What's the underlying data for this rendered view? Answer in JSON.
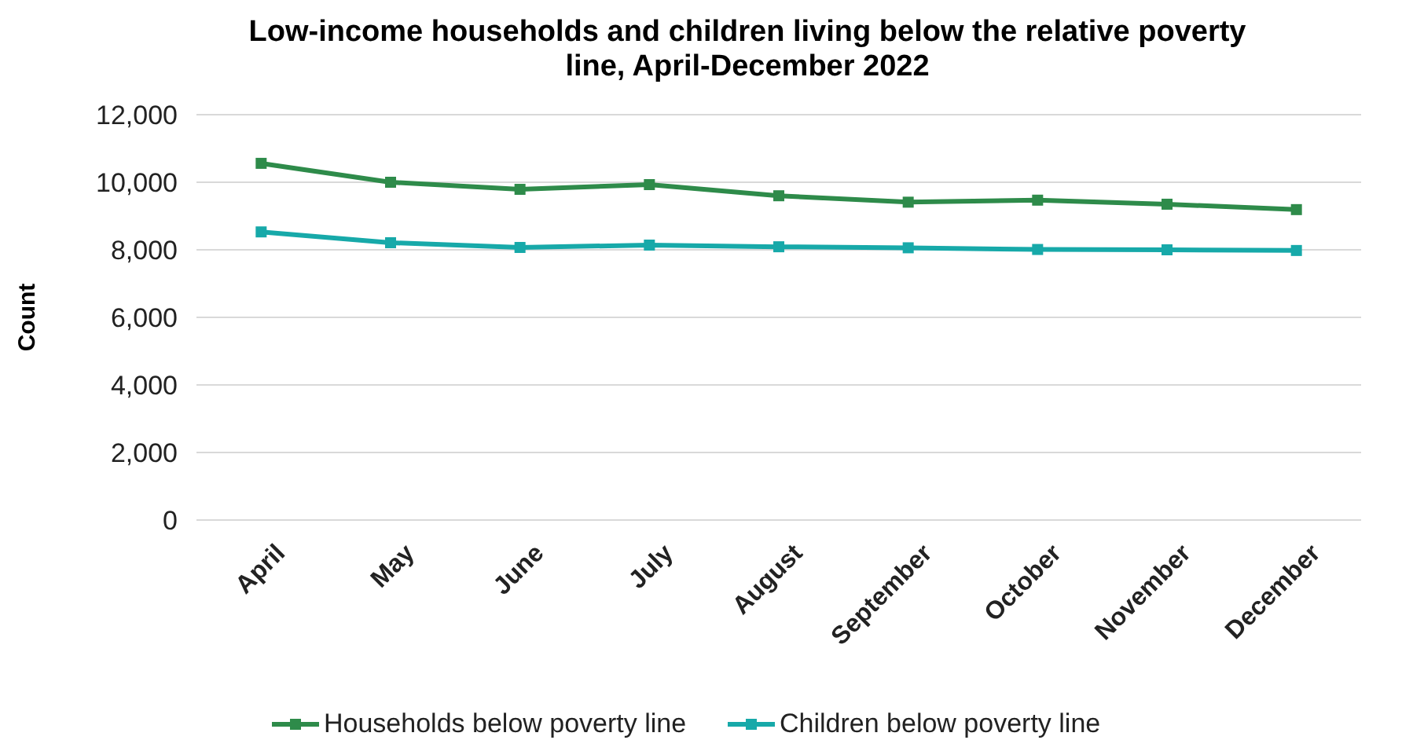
{
  "chart_data": {
    "type": "line",
    "title": "Low-income households and children living below the relative poverty line, April-December 2022",
    "ylabel": "Count",
    "categories": [
      "April",
      "May",
      "June",
      "July",
      "August",
      "September",
      "October",
      "November",
      "December"
    ],
    "series": [
      {
        "name": "Households below poverty line",
        "color": "#2e8b4a",
        "values": [
          10560,
          10000,
          9790,
          9930,
          9600,
          9410,
          9470,
          9350,
          9190
        ]
      },
      {
        "name": "Children below poverty line",
        "color": "#17a9a9",
        "values": [
          8530,
          8210,
          8070,
          8140,
          8090,
          8060,
          8010,
          8000,
          7980
        ]
      }
    ],
    "ylim": [
      0,
      12000
    ],
    "yticks": [
      {
        "value": 0,
        "label": "0"
      },
      {
        "value": 2000,
        "label": "2,000"
      },
      {
        "value": 4000,
        "label": "4,000"
      },
      {
        "value": 6000,
        "label": "6,000"
      },
      {
        "value": 8000,
        "label": "8,000"
      },
      {
        "value": 10000,
        "label": "10,000"
      },
      {
        "value": 12000,
        "label": "12,000"
      }
    ],
    "grid": "y",
    "legend": "bottom",
    "marker": "square",
    "line_style": "solid"
  }
}
